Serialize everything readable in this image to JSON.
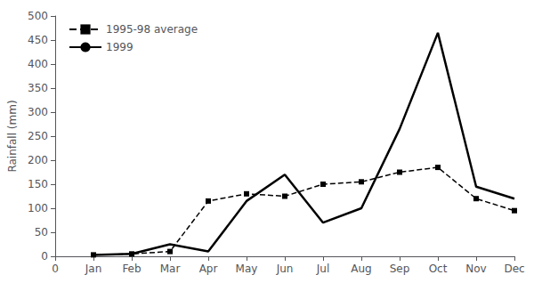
{
  "chart_data": {
    "type": "line",
    "ylabel": "Rainfall (mm)",
    "categories": [
      "0",
      "Jan",
      "Feb",
      "Mar",
      "Apr",
      "May",
      "Jun",
      "Jul",
      "Aug",
      "Sep",
      "Oct",
      "Nov",
      "Dec"
    ],
    "series": [
      {
        "name": "1995-98 average",
        "color": "#000000",
        "line_style": "dashed",
        "marker": "square",
        "values": [
          null,
          3,
          5,
          10,
          115,
          130,
          125,
          150,
          155,
          175,
          185,
          120,
          95
        ]
      },
      {
        "name": "1999",
        "color": "#000000",
        "line_style": "solid",
        "marker": "none",
        "values": [
          null,
          3,
          5,
          25,
          10,
          115,
          170,
          70,
          100,
          265,
          465,
          145,
          120
        ]
      }
    ],
    "ylim": [
      0,
      500
    ],
    "yticks": [
      0,
      50,
      100,
      150,
      200,
      250,
      300,
      350,
      400,
      450,
      500
    ],
    "grid": false,
    "legend": "upper left"
  }
}
